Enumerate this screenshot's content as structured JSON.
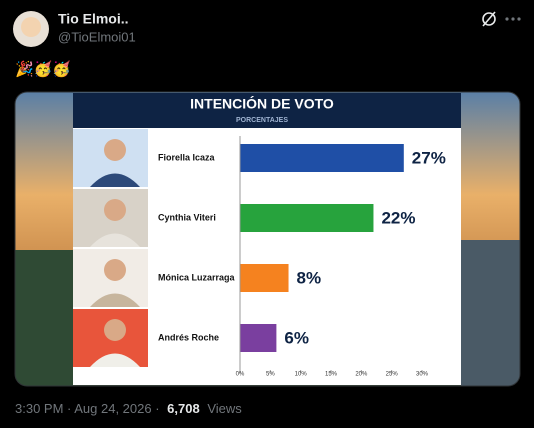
{
  "tweet": {
    "name": "Tio Elmoi..",
    "handle": "@TioElmoi01",
    "text": "🎉🥳🥳",
    "time": "3:30 PM · Aug 24, 2026 ·",
    "views_count": "6,708",
    "views_label": "Views"
  },
  "chart_data": {
    "type": "bar",
    "orientation": "horizontal",
    "title": "INTENCIÓN DE VOTO",
    "subtitle": "PORCENTAJES",
    "categories": [
      "Fiorella Icaza",
      "Cynthia Viteri",
      "Mónica Luzarraga",
      "Andrés Roche"
    ],
    "values": [
      27,
      22,
      8,
      6
    ],
    "value_labels": [
      "27%",
      "22%",
      "8%",
      "6%"
    ],
    "colors": [
      "#1f4fa6",
      "#27a33d",
      "#f5821f",
      "#7a3f9f"
    ],
    "xlim": [
      0,
      30
    ],
    "xticks": [
      {
        "value": 0,
        "label": "0%"
      },
      {
        "value": 5,
        "label": "5%"
      },
      {
        "value": 10,
        "label": "10%"
      },
      {
        "value": 15,
        "label": "15%"
      },
      {
        "value": 20,
        "label": "20%"
      },
      {
        "value": 25,
        "label": "25%"
      },
      {
        "value": 30,
        "label": "30%"
      }
    ]
  }
}
